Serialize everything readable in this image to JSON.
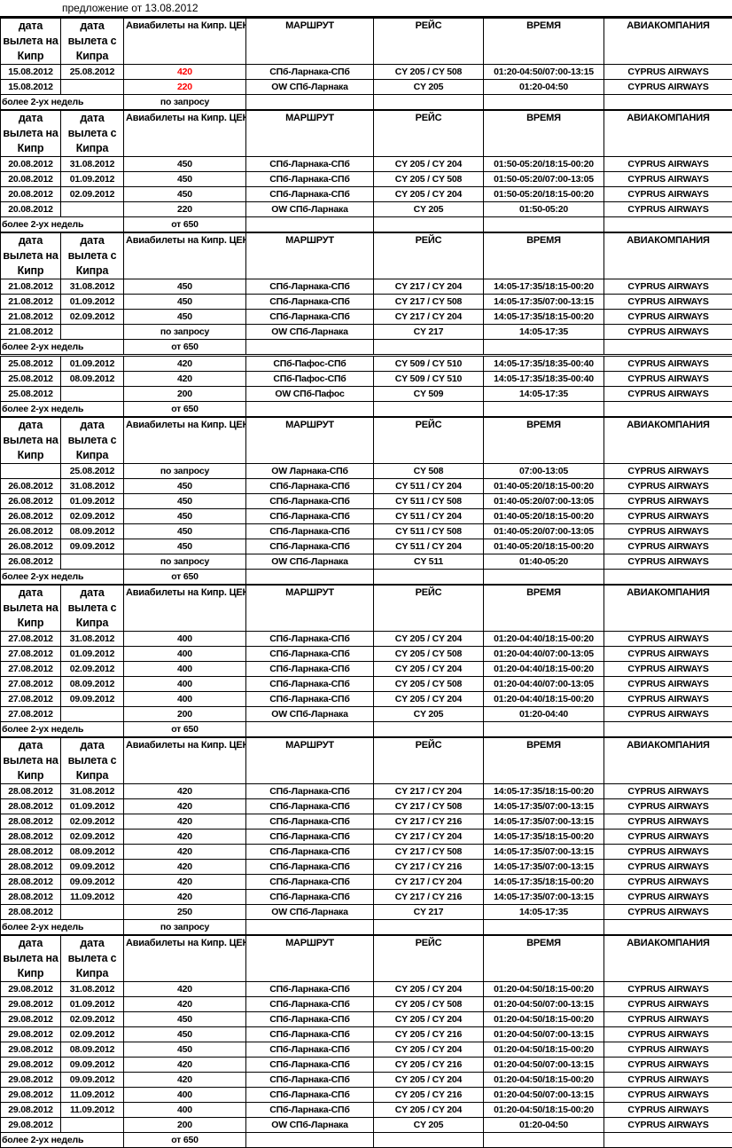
{
  "title": "предложение от 13.08.2012",
  "header": {
    "depart_to": "дата вылета на Кипр",
    "depart_from": "дата вылета с Кипра",
    "price": "Авиабилеты на Кипр. ЦЕНА",
    "route": "МАРШРУТ",
    "flight": "РЕЙС",
    "time": "ВРЕМЯ",
    "airline": "АВИАКОМПАНИЯ"
  },
  "more_label": "более 2-ух недель",
  "highlight_color": "#ff0000",
  "blocks": [
    {
      "header": true,
      "price_highlight": true,
      "rows": [
        [
          "15.08.2012",
          "25.08.2012",
          "420",
          "СПб-Ларнака-СПб",
          "CY 205 / CY 508",
          "01:20-04:50/07:00-13:15",
          "CYPRUS AIRWAYS"
        ],
        [
          "15.08.2012",
          "",
          "220",
          "OW СПб-Ларнака",
          "CY 205",
          "01:20-04:50",
          "CYPRUS AIRWAYS"
        ]
      ],
      "more_price": "по запросу"
    },
    {
      "header": true,
      "rows": [
        [
          "20.08.2012",
          "31.08.2012",
          "450",
          "СПб-Ларнака-СПб",
          "CY 205 / CY 204",
          "01:50-05:20/18:15-00:20",
          "CYPRUS AIRWAYS"
        ],
        [
          "20.08.2012",
          "01.09.2012",
          "450",
          "СПб-Ларнака-СПб",
          "CY 205 / CY 508",
          "01:50-05:20/07:00-13:05",
          "CYPRUS AIRWAYS"
        ],
        [
          "20.08.2012",
          "02.09.2012",
          "450",
          "СПб-Ларнака-СПб",
          "CY 205 / CY 204",
          "01:50-05:20/18:15-00:20",
          "CYPRUS AIRWAYS"
        ],
        [
          "20.08.2012",
          "",
          "220",
          "OW СПб-Ларнака",
          "CY 205",
          "01:50-05:20",
          "CYPRUS AIRWAYS"
        ]
      ],
      "more_price": "от 650"
    },
    {
      "header": true,
      "rows": [
        [
          "21.08.2012",
          "31.08.2012",
          "450",
          "СПб-Ларнака-СПб",
          "CY 217 / CY 204",
          "14:05-17:35/18:15-00:20",
          "CYPRUS AIRWAYS"
        ],
        [
          "21.08.2012",
          "01.09.2012",
          "450",
          "СПб-Ларнака-СПб",
          "CY 217 / CY 508",
          "14:05-17:35/07:00-13:15",
          "CYPRUS AIRWAYS"
        ],
        [
          "21.08.2012",
          "02.09.2012",
          "450",
          "СПб-Ларнака-СПб",
          "CY 217 / CY 204",
          "14:05-17:35/18:15-00:20",
          "CYPRUS AIRWAYS"
        ],
        [
          "21.08.2012",
          "",
          "по запросу",
          "OW СПб-Ларнака",
          "CY 217",
          "14:05-17:35",
          "CYPRUS AIRWAYS"
        ]
      ],
      "more_price": "от 650"
    },
    {
      "header": false,
      "rows": [
        [
          "25.08.2012",
          "01.09.2012",
          "420",
          "СПб-Пафос-СПб",
          "CY 509 / CY 510",
          "14:05-17:35/18:35-00:40",
          "CYPRUS AIRWAYS"
        ],
        [
          "25.08.2012",
          "08.09.2012",
          "420",
          "СПб-Пафос-СПб",
          "CY 509 / CY 510",
          "14:05-17:35/18:35-00:40",
          "CYPRUS AIRWAYS"
        ],
        [
          "25.08.2012",
          "",
          "200",
          "OW СПб-Пафос",
          "CY 509",
          "14:05-17:35",
          "CYPRUS AIRWAYS"
        ]
      ],
      "more_price": "от 650"
    },
    {
      "header": true,
      "rows": [
        [
          "",
          "25.08.2012",
          "по запросу",
          "OW Ларнака-СПб",
          "CY 508",
          "07:00-13:05",
          "CYPRUS AIRWAYS"
        ],
        [
          "26.08.2012",
          "31.08.2012",
          "450",
          "СПб-Ларнака-СПб",
          "CY 511 / CY 204",
          "01:40-05:20/18:15-00:20",
          "CYPRUS AIRWAYS"
        ],
        [
          "26.08.2012",
          "01.09.2012",
          "450",
          "СПб-Ларнака-СПб",
          "CY 511 / CY 508",
          "01:40-05:20/07:00-13:05",
          "CYPRUS AIRWAYS"
        ],
        [
          "26.08.2012",
          "02.09.2012",
          "450",
          "СПб-Ларнака-СПб",
          "CY 511 / CY 204",
          "01:40-05:20/18:15-00:20",
          "CYPRUS AIRWAYS"
        ],
        [
          "26.08.2012",
          "08.09.2012",
          "450",
          "СПб-Ларнака-СПб",
          "CY 511 / CY 508",
          "01:40-05:20/07:00-13:05",
          "CYPRUS AIRWAYS"
        ],
        [
          "26.08.2012",
          "09.09.2012",
          "450",
          "СПб-Ларнака-СПб",
          "CY 511 / CY 204",
          "01:40-05:20/18:15-00:20",
          "CYPRUS AIRWAYS"
        ],
        [
          "26.08.2012",
          "",
          "по запросу",
          "OW СПб-Ларнака",
          "CY 511",
          "01:40-05:20",
          "CYPRUS AIRWAYS"
        ]
      ],
      "more_price": "от 650"
    },
    {
      "header": true,
      "rows": [
        [
          "27.08.2012",
          "31.08.2012",
          "400",
          "СПб-Ларнака-СПб",
          "CY 205 / CY 204",
          "01:20-04:40/18:15-00:20",
          "CYPRUS AIRWAYS"
        ],
        [
          "27.08.2012",
          "01.09.2012",
          "400",
          "СПб-Ларнака-СПб",
          "CY 205 / CY 508",
          "01:20-04:40/07:00-13:05",
          "CYPRUS AIRWAYS"
        ],
        [
          "27.08.2012",
          "02.09.2012",
          "400",
          "СПб-Ларнака-СПб",
          "CY 205 / CY 204",
          "01:20-04:40/18:15-00:20",
          "CYPRUS AIRWAYS"
        ],
        [
          "27.08.2012",
          "08.09.2012",
          "400",
          "СПб-Ларнака-СПб",
          "CY 205 / CY 508",
          "01:20-04:40/07:00-13:05",
          "CYPRUS AIRWAYS"
        ],
        [
          "27.08.2012",
          "09.09.2012",
          "400",
          "СПб-Ларнака-СПб",
          "CY 205 / CY 204",
          "01:20-04:40/18:15-00:20",
          "CYPRUS AIRWAYS"
        ],
        [
          "27.08.2012",
          "",
          "200",
          "OW СПб-Ларнака",
          "CY 205",
          "01:20-04:40",
          "CYPRUS AIRWAYS"
        ]
      ],
      "more_price": "от 650"
    },
    {
      "header": true,
      "rows": [
        [
          "28.08.2012",
          "31.08.2012",
          "420",
          "СПб-Ларнака-СПб",
          "CY 217 / CY 204",
          "14:05-17:35/18:15-00:20",
          "CYPRUS AIRWAYS"
        ],
        [
          "28.08.2012",
          "01.09.2012",
          "420",
          "СПб-Ларнака-СПб",
          "CY 217 / CY 508",
          "14:05-17:35/07:00-13:15",
          "CYPRUS AIRWAYS"
        ],
        [
          "28.08.2012",
          "02.09.2012",
          "420",
          "СПб-Ларнака-СПб",
          "CY 217 / CY 216",
          "14:05-17:35/07:00-13:15",
          "CYPRUS AIRWAYS"
        ],
        [
          "28.08.2012",
          "02.09.2012",
          "420",
          "СПб-Ларнака-СПб",
          "CY 217 / CY 204",
          "14:05-17:35/18:15-00:20",
          "CYPRUS AIRWAYS"
        ],
        [
          "28.08.2012",
          "08.09.2012",
          "420",
          "СПб-Ларнака-СПб",
          "CY 217 / CY 508",
          "14:05-17:35/07:00-13:15",
          "CYPRUS AIRWAYS"
        ],
        [
          "28.08.2012",
          "09.09.2012",
          "420",
          "СПб-Ларнака-СПб",
          "CY 217 / CY 216",
          "14:05-17:35/07:00-13:15",
          "CYPRUS AIRWAYS"
        ],
        [
          "28.08.2012",
          "09.09.2012",
          "420",
          "СПб-Ларнака-СПб",
          "CY 217 / CY 204",
          "14:05-17:35/18:15-00:20",
          "CYPRUS AIRWAYS"
        ],
        [
          "28.08.2012",
          "11.09.2012",
          "420",
          "СПб-Ларнака-СПб",
          "CY 217 / CY 216",
          "14:05-17:35/07:00-13:15",
          "CYPRUS AIRWAYS"
        ],
        [
          "28.08.2012",
          "",
          "250",
          "OW СПб-Ларнака",
          "CY 217",
          "14:05-17:35",
          "CYPRUS AIRWAYS"
        ]
      ],
      "more_price": "по запросу"
    },
    {
      "header": true,
      "rows": [
        [
          "29.08.2012",
          "31.08.2012",
          "420",
          "СПб-Ларнака-СПб",
          "CY 205 / CY 204",
          "01:20-04:50/18:15-00:20",
          "CYPRUS AIRWAYS"
        ],
        [
          "29.08.2012",
          "01.09.2012",
          "420",
          "СПб-Ларнака-СПб",
          "CY 205 / CY 508",
          "01:20-04:50/07:00-13:15",
          "CYPRUS AIRWAYS"
        ],
        [
          "29.08.2012",
          "02.09.2012",
          "450",
          "СПб-Ларнака-СПб",
          "CY 205 / CY 204",
          "01:20-04:50/18:15-00:20",
          "CYPRUS AIRWAYS"
        ],
        [
          "29.08.2012",
          "02.09.2012",
          "450",
          "СПб-Ларнака-СПб",
          "CY 205 / CY 216",
          "01:20-04:50/07:00-13:15",
          "CYPRUS AIRWAYS"
        ],
        [
          "29.08.2012",
          "08.09.2012",
          "450",
          "СПб-Ларнака-СПб",
          "CY 205 / CY 204",
          "01:20-04:50/18:15-00:20",
          "CYPRUS AIRWAYS"
        ],
        [
          "29.08.2012",
          "09.09.2012",
          "420",
          "СПб-Ларнака-СПб",
          "CY 205 / CY 216",
          "01:20-04:50/07:00-13:15",
          "CYPRUS AIRWAYS"
        ],
        [
          "29.08.2012",
          "09.09.2012",
          "420",
          "СПб-Ларнака-СПб",
          "CY 205 / CY 204",
          "01:20-04:50/18:15-00:20",
          "CYPRUS AIRWAYS"
        ],
        [
          "29.08.2012",
          "11.09.2012",
          "400",
          "СПб-Ларнака-СПб",
          "CY 205 / CY 216",
          "01:20-04:50/07:00-13:15",
          "CYPRUS AIRWAYS"
        ],
        [
          "29.08.2012",
          "11.09.2012",
          "400",
          "СПб-Ларнака-СПб",
          "CY 205 / CY 204",
          "01:20-04:50/18:15-00:20",
          "CYPRUS AIRWAYS"
        ],
        [
          "29.08.2012",
          "",
          "200",
          "OW СПб-Ларнака",
          "CY 205",
          "01:20-04:50",
          "CYPRUS AIRWAYS"
        ]
      ],
      "more_price": "от 650"
    }
  ]
}
